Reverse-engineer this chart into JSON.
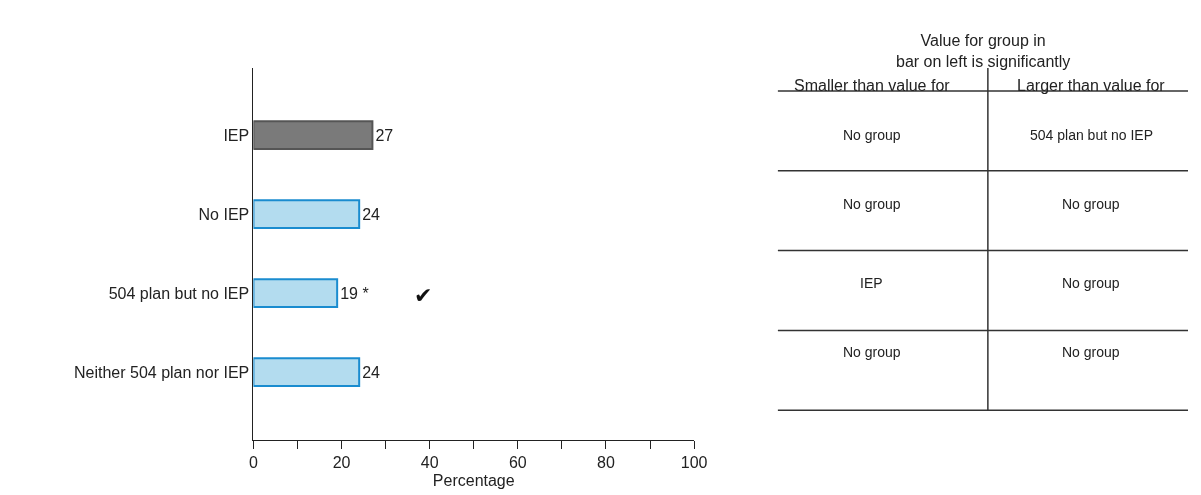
{
  "chart_data": [
    {
      "type": "bar",
      "orientation": "horizontal",
      "xlabel": "Percentage",
      "categories": [
        "IEP",
        "No IEP",
        "504 plan but no IEP",
        "Neither 504 plan nor IEP"
      ],
      "values": [
        27,
        24,
        19,
        24
      ],
      "colors": [
        "#7a7a7a",
        "#b3dcef",
        "#b3dcef",
        "#b3dcef"
      ],
      "value_labels": [
        "27",
        "24",
        "19 *",
        "24"
      ],
      "xlim": [
        0,
        100
      ],
      "xticks": [
        0,
        {
          "value": 10,
          "label": null
        },
        20,
        {
          "value": 30,
          "label": null
        },
        40,
        {
          "value": 50,
          "label": null
        },
        60,
        {
          "value": 70,
          "label": null
        },
        80,
        {
          "value": 90,
          "label": null
        },
        100
      ],
      "annotations": [
        "✔"
      ]
    },
    {
      "type": "other",
      "title": "Value for group in\nbar on left is significantly",
      "categories": [
        "Smaller than value for",
        "Larger than value for"
      ],
      "annotations": [
        "No group",
        "504 plan but no IEP",
        "No group",
        "No group",
        "IEP",
        "No group",
        "No group",
        "No group"
      ]
    }
  ]
}
